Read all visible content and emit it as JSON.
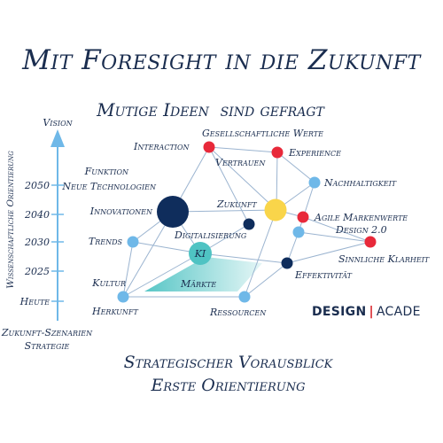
{
  "title": "Mit Foresight in die Zukunft",
  "subtitle": "Mutige Ideen  sind gefragt",
  "bottom_line1": "Strategischer Vorausblick",
  "bottom_line2": "Erste Orientierung",
  "axis": {
    "title": "Wissenschaftliche Orientierung",
    "top_label": "Vision",
    "ticks": [
      "Heute",
      "2025",
      "2030",
      "2040",
      "2050"
    ],
    "sources": [
      "Zukunft-Szenarien",
      "Strategie"
    ]
  },
  "left_labels": [
    "Funktion",
    "Neue Technologien",
    "Innovationen",
    "Trends",
    "Kultur",
    "Herkunft"
  ],
  "node_labels": {
    "interaction": "Interaction",
    "gesellschaftliche_werte": "Gesellschaftliche Werte",
    "vertrauen": "Vertrauen",
    "experience": "Experience",
    "nachhaltigkeit": "Nachhaltigkeit",
    "zukunft": "Zukunft",
    "agile_markenwerte": "Agile Markenwerte",
    "design_2_0": "Design 2.0",
    "digitalisierung": "Digitalisierung",
    "ki": "KI",
    "sinnliche_klarheit": "Sinnliche Klarheit",
    "effektivitaet": "Effektivität",
    "maerkte": "Märkte",
    "ressourcen": "Ressourcen"
  },
  "brand": {
    "part1": "DESIGN",
    "separator": "|",
    "part2": "ACADE"
  },
  "colors": {
    "navy": "#0f2d5c",
    "red": "#e8293a",
    "yellow": "#f9d54a",
    "light_blue": "#6fb8e8",
    "teal": "#4fc3c3",
    "grid_line": "#9bb4d0",
    "text": "#1a2d4f"
  }
}
